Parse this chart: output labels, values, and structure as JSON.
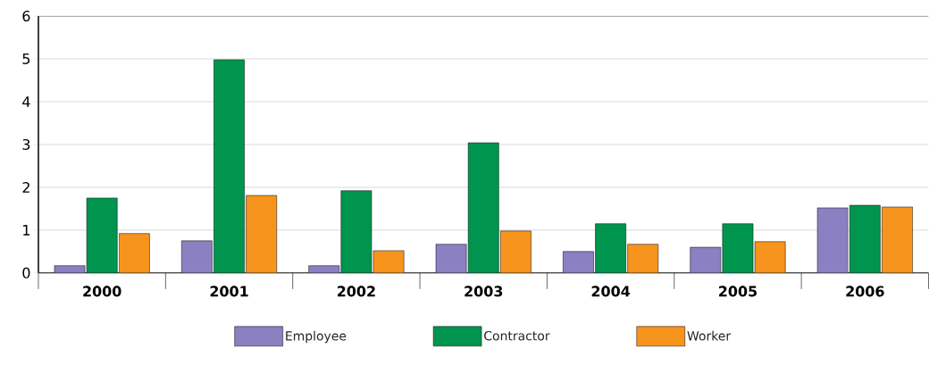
{
  "chart_data": {
    "type": "bar",
    "categories": [
      "2000",
      "2001",
      "2002",
      "2003",
      "2004",
      "2005",
      "2006"
    ],
    "series": [
      {
        "name": "Employee",
        "color": "#8a80c2",
        "values": [
          0.17,
          0.75,
          0.17,
          0.67,
          0.5,
          0.6,
          1.52
        ]
      },
      {
        "name": "Contractor",
        "color": "#00954f",
        "values": [
          1.75,
          4.98,
          1.92,
          3.04,
          1.15,
          1.15,
          1.58
        ]
      },
      {
        "name": "Worker",
        "color": "#f7941d",
        "values": [
          0.92,
          1.81,
          0.52,
          0.98,
          0.67,
          0.73,
          1.54
        ]
      }
    ],
    "ylim": [
      0,
      6
    ],
    "yticks": [
      0,
      1,
      2,
      3,
      4,
      5,
      6
    ],
    "grid": "y",
    "legend": "bottom"
  }
}
